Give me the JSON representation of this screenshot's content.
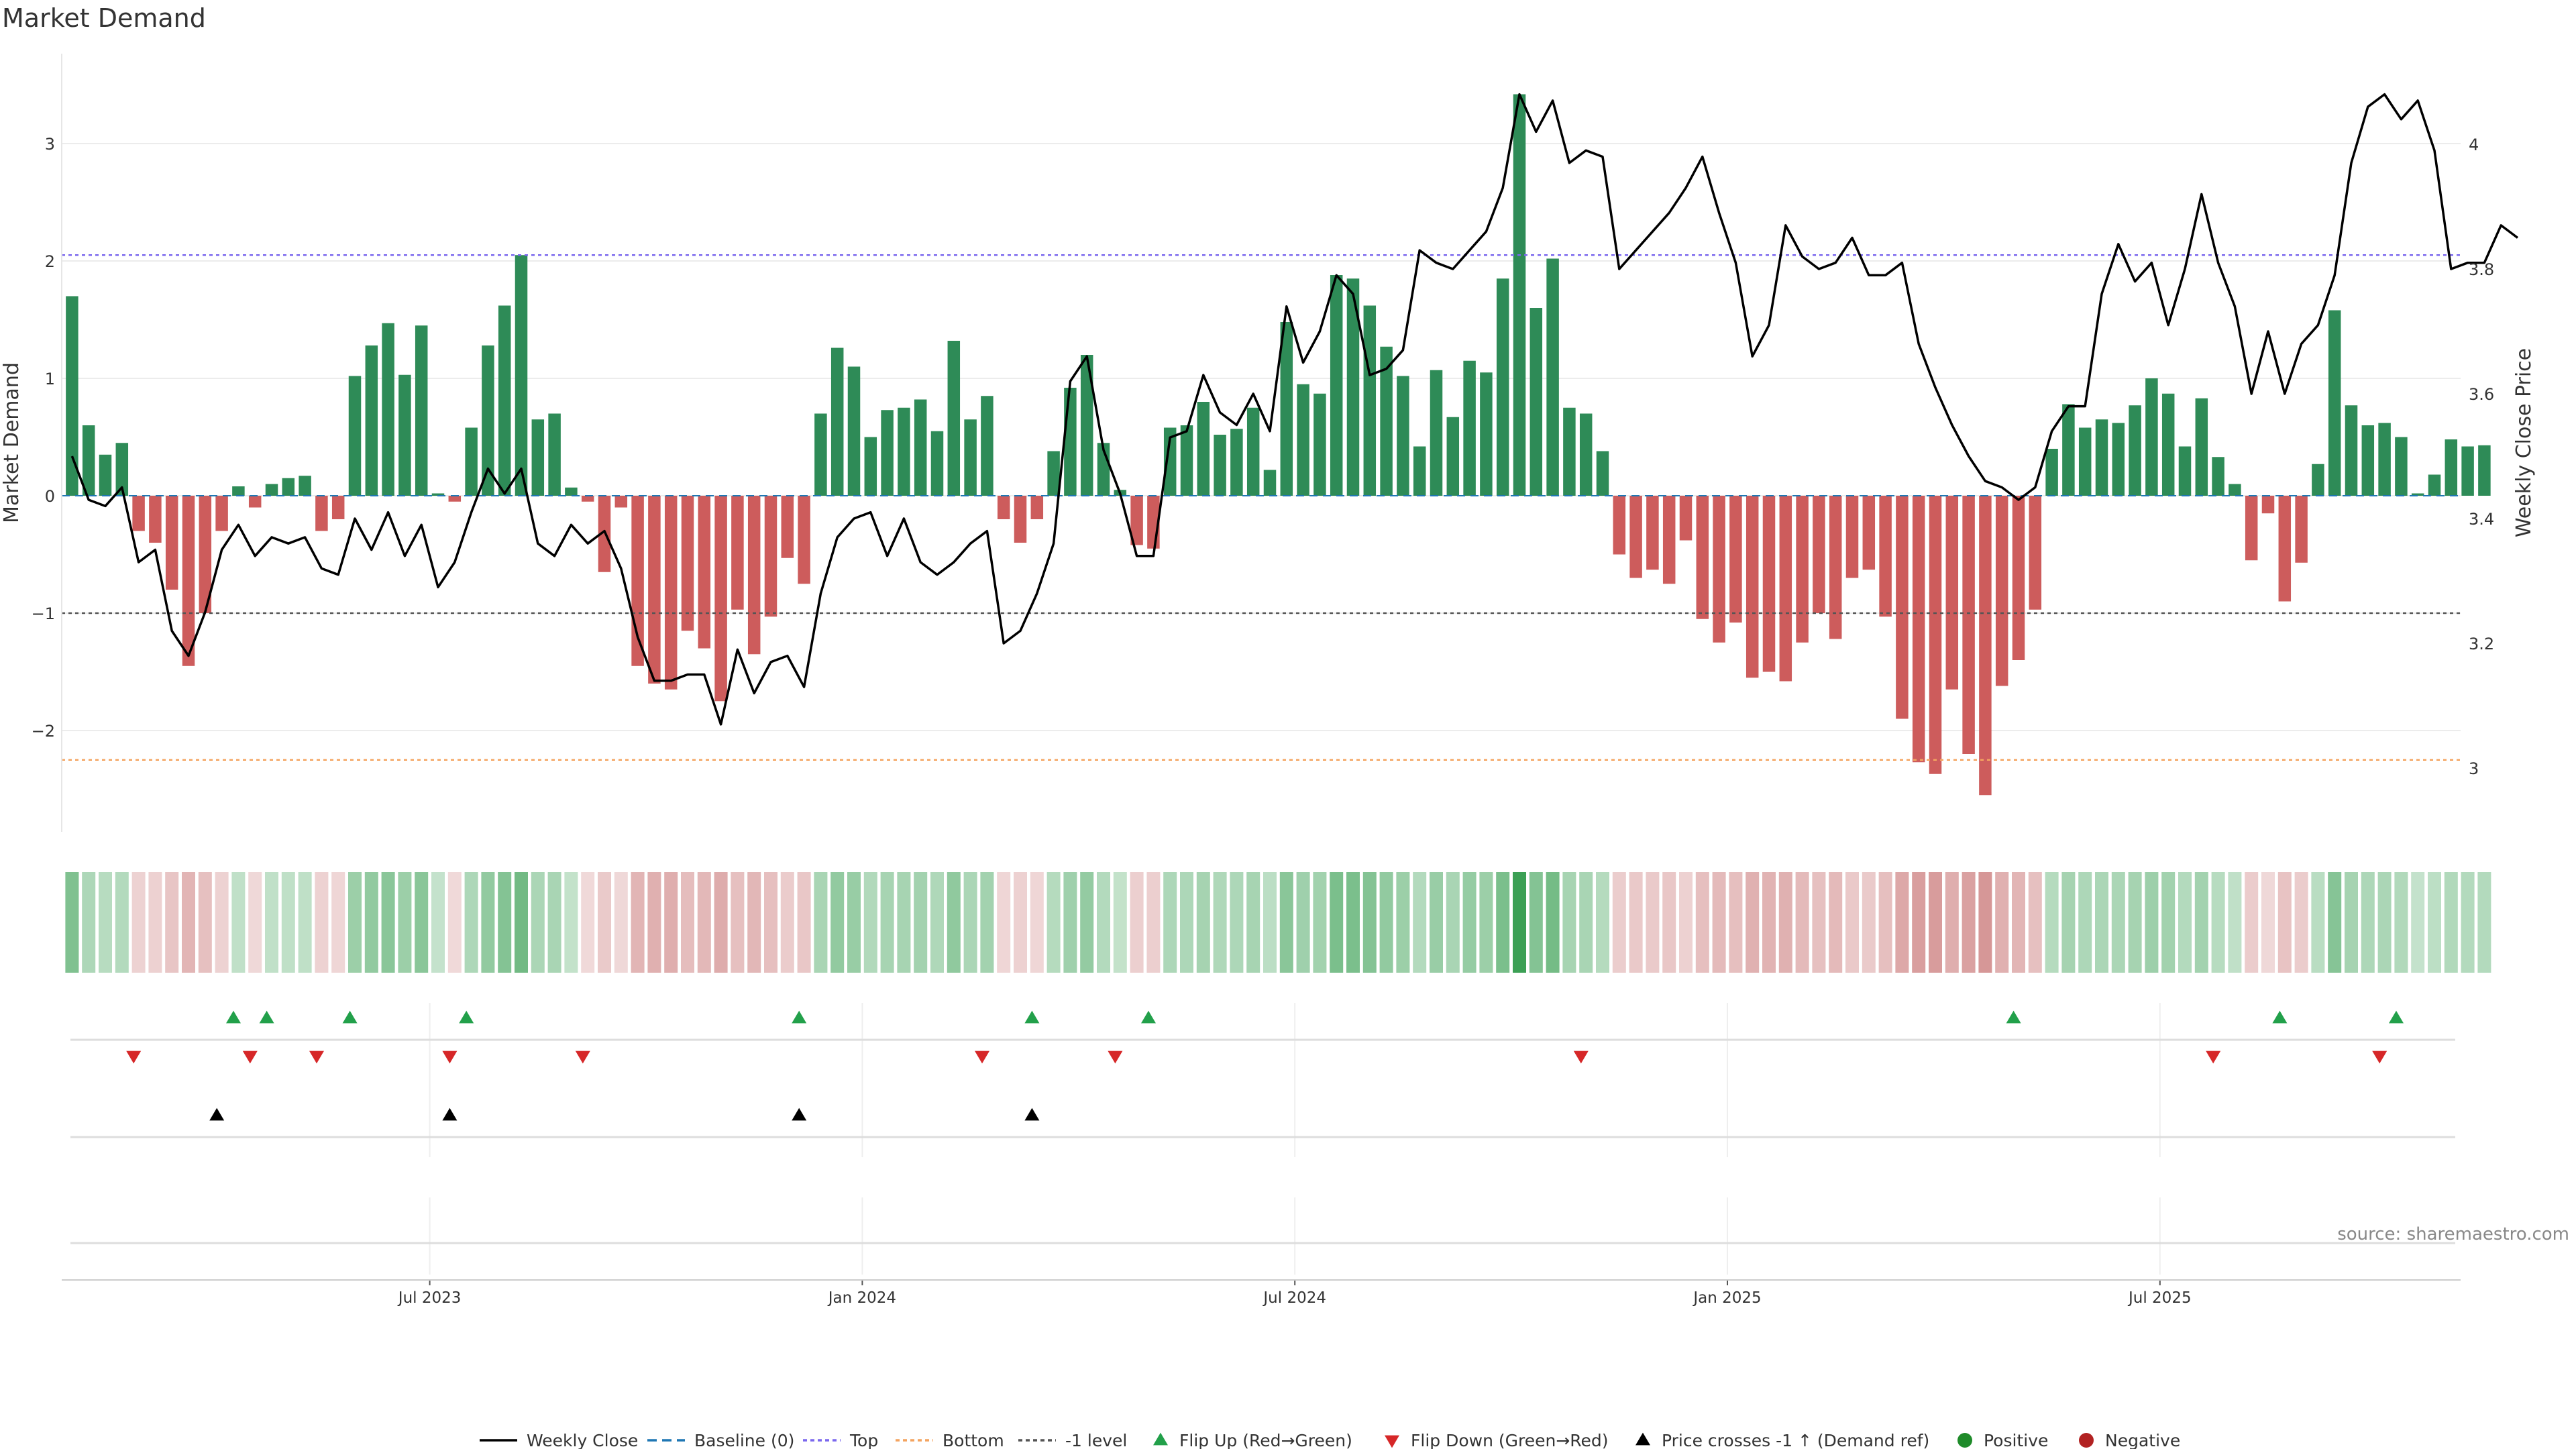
{
  "title": "Market Demand",
  "source": "source: sharemaestro.com",
  "chart_data": {
    "type": "bar",
    "title": "Market Demand",
    "ylabel": "Market Demand",
    "y2label": "Weekly Close Price",
    "ylim": [
      -2.9,
      3.8
    ],
    "y2lim": [
      2.87,
      4.12
    ],
    "yticks": [
      -2,
      -1,
      0,
      1,
      2,
      3
    ],
    "yticklabels": [
      "−2",
      "−1",
      "0",
      "1",
      "2",
      "3"
    ],
    "y2ticks": [
      3,
      3.2,
      3.4,
      3.6,
      3.8,
      4
    ],
    "y2ticklabels": [
      "3",
      "3.2",
      "3.4",
      "3.6",
      "3.8",
      "4"
    ],
    "reference_lines": {
      "baseline": 0,
      "top": 2.05,
      "bottom": -2.25,
      "minus_one": -1
    },
    "x_ticks": [
      {
        "label": "Jul 2023",
        "week": 22
      },
      {
        "label": "Jan 2024",
        "week": 48
      },
      {
        "label": "Jul 2024",
        "week": 74
      },
      {
        "label": "Jan 2025",
        "week": 100
      },
      {
        "label": "Jul 2025",
        "week": 126
      }
    ],
    "demand": [
      1.7,
      0.6,
      0.35,
      0.45,
      -0.3,
      -0.4,
      -0.8,
      -1.45,
      -1.0,
      -0.3,
      0.08,
      -0.1,
      0.1,
      0.15,
      0.17,
      -0.3,
      -0.2,
      1.02,
      1.28,
      1.47,
      1.03,
      1.45,
      0.02,
      -0.05,
      0.58,
      1.28,
      1.62,
      2.05,
      0.65,
      0.7,
      0.07,
      -0.05,
      -0.65,
      -0.1,
      -1.45,
      -1.6,
      -1.65,
      -1.15,
      -1.3,
      -1.75,
      -0.97,
      -1.35,
      -1.03,
      -0.53,
      -0.75,
      0.7,
      1.26,
      1.1,
      0.5,
      0.73,
      0.75,
      0.82,
      0.55,
      1.32,
      0.65,
      0.85,
      -0.2,
      -0.4,
      -0.2,
      0.38,
      0.92,
      1.2,
      0.45,
      0.05,
      -0.42,
      -0.45,
      0.58,
      0.6,
      0.8,
      0.52,
      0.57,
      0.75,
      0.22,
      1.48,
      0.95,
      0.87,
      1.88,
      1.85,
      1.62,
      1.27,
      1.02,
      0.42,
      1.07,
      0.67,
      1.15,
      1.05,
      1.85,
      3.42,
      1.6,
      2.02,
      0.75,
      0.7,
      0.38,
      -0.5,
      -0.7,
      -0.63,
      -0.75,
      -0.38,
      -1.05,
      -1.25,
      -1.08,
      -1.55,
      -1.5,
      -1.58,
      -1.25,
      -1.0,
      -1.22,
      -0.7,
      -0.63,
      -1.03,
      -1.9,
      -2.27,
      -2.37,
      -1.65,
      -2.2,
      -2.55,
      -1.62,
      -1.4,
      -0.97,
      0.4,
      0.78,
      0.58,
      0.65,
      0.62,
      0.77,
      1.0,
      0.87,
      0.42,
      0.83,
      0.33,
      0.1,
      -0.55,
      -0.15,
      -0.9,
      -0.57,
      0.27,
      1.58,
      0.77,
      0.6,
      0.62,
      0.5,
      0.02,
      0.18,
      0.48,
      0.42,
      0.43
    ],
    "weekly_close": [
      3.5,
      3.43,
      3.42,
      3.45,
      3.33,
      3.35,
      3.22,
      3.18,
      3.25,
      3.35,
      3.39,
      3.34,
      3.37,
      3.36,
      3.37,
      3.32,
      3.31,
      3.4,
      3.35,
      3.41,
      3.34,
      3.39,
      3.29,
      3.33,
      3.41,
      3.48,
      3.44,
      3.48,
      3.36,
      3.34,
      3.39,
      3.36,
      3.38,
      3.32,
      3.21,
      3.14,
      3.14,
      3.15,
      3.15,
      3.07,
      3.19,
      3.12,
      3.17,
      3.18,
      3.13,
      3.28,
      3.37,
      3.4,
      3.41,
      3.34,
      3.4,
      3.33,
      3.31,
      3.33,
      3.36,
      3.38,
      3.2,
      3.22,
      3.28,
      3.36,
      3.62,
      3.66,
      3.51,
      3.44,
      3.34,
      3.34,
      3.53,
      3.54,
      3.63,
      3.57,
      3.55,
      3.6,
      3.54,
      3.74,
      3.65,
      3.7,
      3.79,
      3.76,
      3.63,
      3.64,
      3.67,
      3.83,
      3.81,
      3.8,
      3.83,
      3.86,
      3.93,
      4.08,
      4.02,
      4.07,
      3.97,
      3.99,
      3.98,
      3.8,
      3.83,
      3.86,
      3.89,
      3.93,
      3.98,
      3.89,
      3.81,
      3.66,
      3.71,
      3.87,
      3.82,
      3.8,
      3.81,
      3.85,
      3.79,
      3.79,
      3.81,
      3.68,
      3.61,
      3.55,
      3.5,
      3.46,
      3.45,
      3.43,
      3.45,
      3.54,
      3.58,
      3.58,
      3.76,
      3.84,
      3.78,
      3.81,
      3.71,
      3.8,
      3.92,
      3.81,
      3.74,
      3.6,
      3.7,
      3.6,
      3.68,
      3.71,
      3.79,
      3.97,
      4.06,
      4.08,
      4.04,
      4.07,
      3.99,
      3.8,
      3.81,
      3.81,
      3.87,
      3.85
    ],
    "flip_up_weeks": [
      10,
      12,
      17,
      24,
      44,
      58,
      65,
      117,
      133,
      140
    ],
    "flip_down_weeks": [
      4,
      11,
      15,
      23,
      31,
      55,
      63,
      91,
      129,
      139
    ],
    "price_cross_weeks": [
      9,
      23,
      44,
      58
    ],
    "legend": [
      "Weekly Close",
      "Baseline (0)",
      "Top",
      "Bottom",
      "-1 level",
      "Flip Up (Red→Green)",
      "Flip Down (Green→Red)",
      "Price crosses -1 ↑ (Demand ref)",
      "Positive",
      "Negative"
    ]
  },
  "colors": {
    "positive": "#2e8b57",
    "negative": "#cd5c5c",
    "price_line": "#000000",
    "top_line": "#7b68ee",
    "bottom_line": "#f4a460",
    "minus_one_line": "#555555",
    "baseline": "#1f77b4",
    "flip_up": "#22a04a",
    "flip_down": "#d62728",
    "cross": "#000000",
    "positive_dot": "#1f8b2a",
    "negative_dot": "#b22222"
  }
}
